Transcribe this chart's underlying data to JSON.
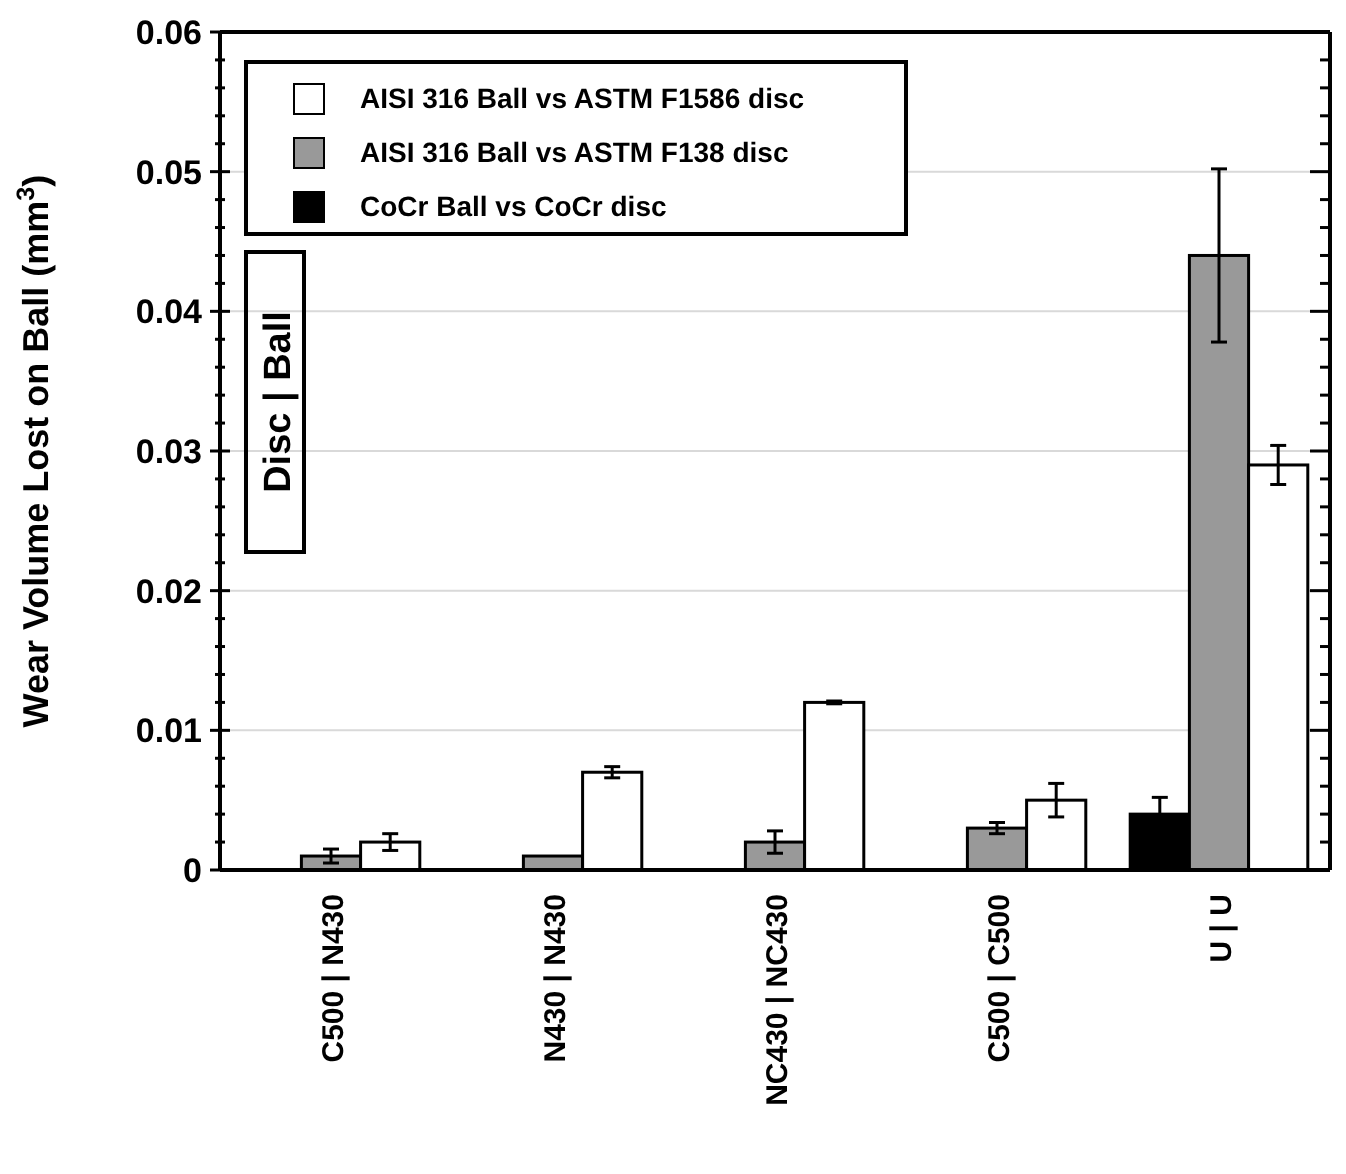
{
  "chart_data": {
    "type": "bar",
    "ylabel": "Wear Volume Lost on Ball (mm$^{3}$)",
    "categories": [
      "C500 | N430",
      "N430 | N430",
      "NC430 | NC430",
      "C500 | C500",
      "U | U"
    ],
    "series": [
      {
        "name": "CoCr Ball vs CoCr disc",
        "color": "#000000",
        "values": [
          null,
          null,
          null,
          null,
          0.004
        ],
        "errors": [
          null,
          null,
          null,
          null,
          0.0012
        ]
      },
      {
        "name": "AISI 316 Ball vs ASTM F138 disc",
        "color": "#999999",
        "values": [
          0.001,
          0.001,
          0.002,
          0.003,
          0.044
        ],
        "errors": [
          0.0005,
          null,
          0.0008,
          0.0004,
          0.0062
        ]
      },
      {
        "name": "AISI 316 Ball vs ASTM F1586 disc",
        "color": "#ffffff",
        "values": [
          0.002,
          0.007,
          0.012,
          0.005,
          0.029
        ],
        "errors": [
          0.0006,
          0.0004,
          0.0001,
          0.0012,
          0.0014
        ]
      }
    ],
    "ylim": [
      0,
      0.06
    ],
    "yticks": [
      0,
      {
        "value": 0.002,
        "label": null
      },
      {
        "value": 0.004,
        "label": null
      },
      {
        "value": 0.006,
        "label": null
      },
      {
        "value": 0.008,
        "label": null
      },
      0.01,
      {
        "value": 0.012,
        "label": null
      },
      {
        "value": 0.014,
        "label": null
      },
      {
        "value": 0.016,
        "label": null
      },
      {
        "value": 0.018,
        "label": null
      },
      0.02,
      {
        "value": 0.022,
        "label": null
      },
      {
        "value": 0.024,
        "label": null
      },
      {
        "value": 0.026,
        "label": null
      },
      {
        "value": 0.028,
        "label": null
      },
      0.03,
      {
        "value": 0.032,
        "label": null
      },
      {
        "value": 0.034,
        "label": null
      },
      {
        "value": 0.036,
        "label": null
      },
      {
        "value": 0.038,
        "label": null
      },
      0.04,
      {
        "value": 0.042,
        "label": null
      },
      {
        "value": 0.044,
        "label": null
      },
      {
        "value": 0.046,
        "label": null
      },
      {
        "value": 0.048,
        "label": null
      },
      0.05,
      {
        "value": 0.052,
        "label": null
      },
      {
        "value": 0.054,
        "label": null
      },
      {
        "value": 0.056,
        "label": null
      },
      {
        "value": 0.058,
        "label": null
      },
      0.06
    ],
    "grid": "y",
    "legend": "top left",
    "annotations": [
      "Disc | Ball"
    ]
  }
}
